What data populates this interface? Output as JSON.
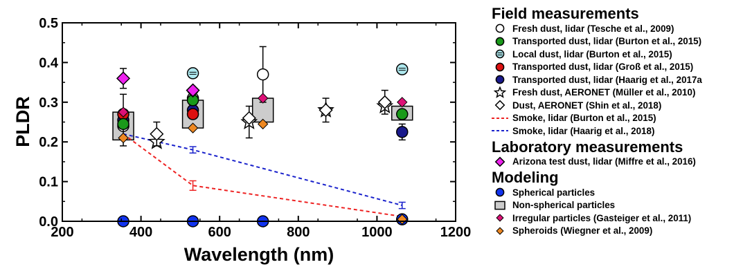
{
  "chart_data": {
    "type": "scatter",
    "xlabel": "Wavelength (nm)",
    "ylabel": "PLDR",
    "xlim": [
      200,
      1200
    ],
    "ylim": [
      0.0,
      0.5
    ],
    "xticks": [
      200,
      400,
      600,
      800,
      1000,
      1200
    ],
    "xtick_labels": [
      "200",
      "400",
      "600",
      "800",
      "1000",
      "1200"
    ],
    "yticks": [
      0.0,
      0.1,
      0.2,
      0.3,
      0.4,
      0.5
    ],
    "ytick_labels": [
      "0.0",
      "0.1",
      "0.2",
      "0.3",
      "0.4",
      "0.5"
    ],
    "grid": false,
    "legend_position": "right",
    "series": [
      {
        "name": "Fresh dust, lidar (Tesche et al., 2009)",
        "group": "field",
        "marker": "circle",
        "fill": "#ffffff",
        "points": [
          {
            "x": 355,
            "y": 0.24
          },
          {
            "x": 532,
            "y": 0.31
          },
          {
            "x": 710,
            "y": 0.37,
            "err": 0.07
          }
        ]
      },
      {
        "name": "Transported dust, lidar (Burton et al., 2015)",
        "group": "field",
        "marker": "circle",
        "fill": "#1a9a1a",
        "points": [
          {
            "x": 355,
            "y": 0.245
          },
          {
            "x": 532,
            "y": 0.305
          },
          {
            "x": 1064,
            "y": 0.27
          }
        ]
      },
      {
        "name": "Local dust, lidar (Burton et al., 2015)",
        "group": "field",
        "marker": "circle-lined",
        "fill": "#aee8ee",
        "points": [
          {
            "x": 532,
            "y": 0.373
          },
          {
            "x": 1064,
            "y": 0.383
          }
        ]
      },
      {
        "name": "Transported dust, lidar (Groß et al., 2015)",
        "group": "field",
        "marker": "circle",
        "fill": "#dd1111",
        "points": [
          {
            "x": 355,
            "y": 0.27
          },
          {
            "x": 532,
            "y": 0.27
          }
        ]
      },
      {
        "name": "Transported dust, lidar (Haarig et al., 2017a",
        "group": "field",
        "marker": "circle",
        "fill": "#1a1a8c",
        "points": [
          {
            "x": 355,
            "y": 0.255,
            "err": 0.065
          },
          {
            "x": 532,
            "y": 0.28
          },
          {
            "x": 1064,
            "y": 0.225,
            "err": 0.02
          }
        ]
      },
      {
        "name": "Fresh dust, AERONET (Müller et al., 2010)",
        "group": "field",
        "marker": "star",
        "fill": "#ffffff",
        "points": [
          {
            "x": 440,
            "y": 0.2
          },
          {
            "x": 675,
            "y": 0.25,
            "err": 0.04
          },
          {
            "x": 870,
            "y": 0.28,
            "err": 0.03
          },
          {
            "x": 1020,
            "y": 0.29
          }
        ]
      },
      {
        "name": "Dust, AERONET (Shin et al., 2018)",
        "group": "field",
        "marker": "diamond",
        "fill": "#ffffff",
        "points": [
          {
            "x": 440,
            "y": 0.22,
            "err": 0.03
          },
          {
            "x": 675,
            "y": 0.26
          },
          {
            "x": 870,
            "y": 0.28
          },
          {
            "x": 1020,
            "y": 0.3,
            "err": 0.03
          }
        ]
      },
      {
        "name": "Smoke, lidar (Burton et al., 2015)",
        "group": "field",
        "marker": "dashed-line",
        "color": "#ee2222",
        "points": [
          {
            "x": 355,
            "y": 0.22
          },
          {
            "x": 532,
            "y": 0.09,
            "err": 0.012
          },
          {
            "x": 1064,
            "y": 0.012
          }
        ]
      },
      {
        "name": "Smoke, lidar (Haarig et al., 2018)",
        "group": "field",
        "marker": "dashed-line",
        "color": "#1a22cc",
        "points": [
          {
            "x": 355,
            "y": 0.22
          },
          {
            "x": 532,
            "y": 0.18,
            "err": 0.008
          },
          {
            "x": 1064,
            "y": 0.04,
            "err": 0.008
          }
        ]
      },
      {
        "name": "Arizona test dust, lidar (Miffre et al., 2016)",
        "group": "laboratory",
        "marker": "diamond",
        "fill": "#ee22ee",
        "points": [
          {
            "x": 355,
            "y": 0.36,
            "err": 0.025
          },
          {
            "x": 532,
            "y": 0.33
          }
        ]
      },
      {
        "name": "Spherical particles",
        "group": "modeling",
        "marker": "circle",
        "fill": "#1133ee",
        "points": [
          {
            "x": 355,
            "y": 0.0
          },
          {
            "x": 532,
            "y": 0.0
          },
          {
            "x": 710,
            "y": 0.0
          },
          {
            "x": 1064,
            "y": 0.005
          }
        ]
      },
      {
        "name": "Non-spherical particles",
        "group": "modeling",
        "marker": "box",
        "fill": "#cccccc",
        "boxes": [
          {
            "x": 355,
            "low": 0.205,
            "high": 0.275
          },
          {
            "x": 532,
            "low": 0.235,
            "high": 0.305
          },
          {
            "x": 710,
            "low": 0.25,
            "high": 0.31
          },
          {
            "x": 1064,
            "low": 0.255,
            "high": 0.29
          }
        ]
      },
      {
        "name": "Irregular particles (Gasteiger et al., 2011)",
        "group": "modeling",
        "marker": "small-diamond",
        "fill": "#dd1177",
        "points": [
          {
            "x": 355,
            "y": 0.275
          },
          {
            "x": 532,
            "y": 0.325
          },
          {
            "x": 710,
            "y": 0.31
          },
          {
            "x": 1064,
            "y": 0.3
          }
        ]
      },
      {
        "name": "Spheroids (Wiegner et al., 2009)",
        "group": "modeling",
        "marker": "small-diamond",
        "fill": "#ee8822",
        "points": [
          {
            "x": 355,
            "y": 0.21
          },
          {
            "x": 532,
            "y": 0.235
          },
          {
            "x": 710,
            "y": 0.245
          },
          {
            "x": 1064,
            "y": 0.005
          }
        ]
      }
    ]
  },
  "legend": {
    "field_heading": "Field measurements",
    "laboratory_heading": "Laboratory measurements",
    "modeling_heading": "Modeling"
  }
}
